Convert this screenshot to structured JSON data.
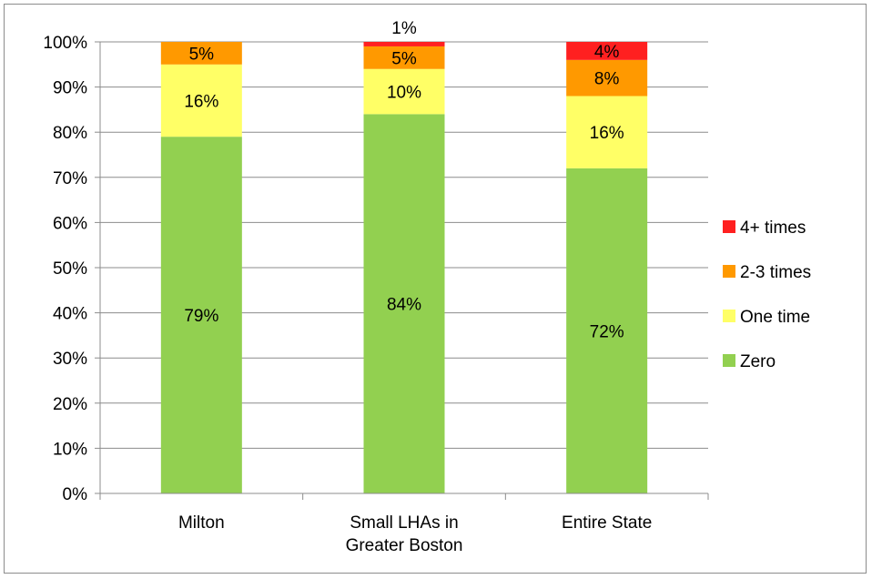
{
  "chart_data": {
    "type": "bar",
    "stacked": true,
    "categories": [
      [
        "Milton"
      ],
      [
        "Small LHAs in",
        "Greater Boston"
      ],
      [
        "Entire State"
      ]
    ],
    "series": [
      {
        "name": "Zero",
        "color": "#92d050",
        "values": [
          79,
          84,
          72
        ],
        "labels": [
          "79%",
          "84%",
          "72%"
        ]
      },
      {
        "name": "One time",
        "color": "#ffff66",
        "values": [
          16,
          10,
          16
        ],
        "labels": [
          "16%",
          "10%",
          "16%"
        ]
      },
      {
        "name": "2-3 times",
        "color": "#ff9900",
        "values": [
          5,
          5,
          8
        ],
        "labels": [
          "5%",
          "5%",
          "8%"
        ]
      },
      {
        "name": "4+ times",
        "color": "#ff2020",
        "values": [
          0,
          1,
          4
        ],
        "labels": [
          "",
          "1%",
          "4%"
        ]
      }
    ],
    "y_ticks": [
      "0%",
      "10%",
      "20%",
      "30%",
      "40%",
      "50%",
      "60%",
      "70%",
      "80%",
      "90%",
      "100%"
    ],
    "ylim": [
      0,
      100
    ],
    "grid": true,
    "legend_position": "right",
    "legend_order": [
      "4+ times",
      "2-3 times",
      "One time",
      "Zero"
    ]
  }
}
